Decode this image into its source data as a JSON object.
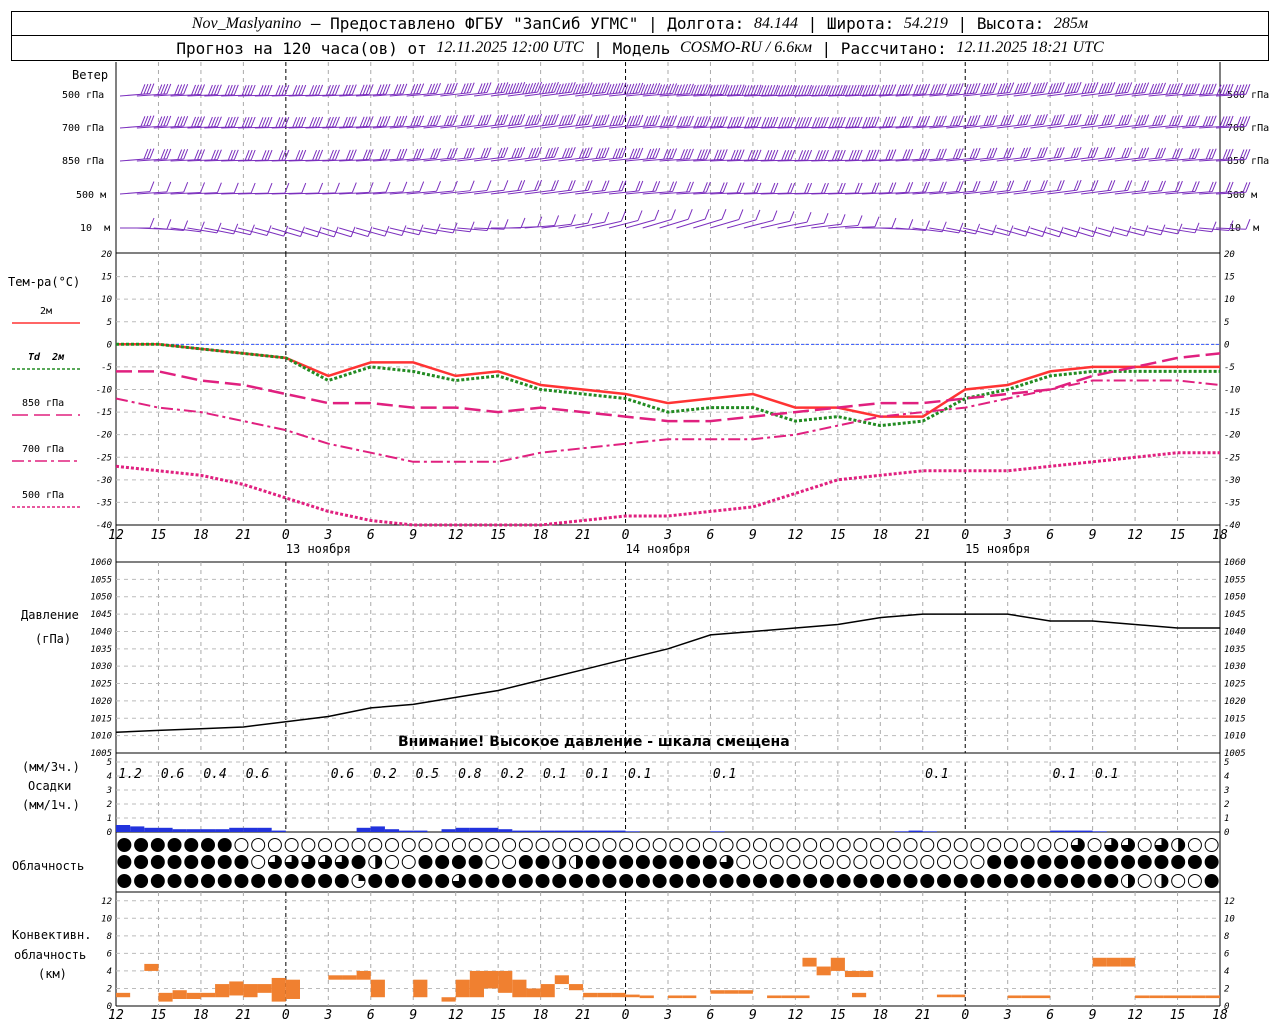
{
  "header": {
    "station": "Nov_Maslyanino",
    "provider": " — Предоставлено ФГБУ \"ЗапСиб УГМС\" | Долгота: ",
    "lon": "84.144",
    "lat_label": " | Широта: ",
    "lat": "54.219",
    "alt_label": " | Высота: ",
    "alt": "285м",
    "forecast_label": "Прогноз на 120 часа(ов) от ",
    "forecast_time": "12.11.2025 12:00 UTC",
    "model_label": " | Модель ",
    "model": "COSMO-RU / 6.6км",
    "calc_label": " | Рассчитано: ",
    "calc_time": "12.11.2025 18:21 UTC"
  },
  "labels": {
    "wind": "Ветер",
    "levels": [
      "500 гПа",
      "700 гПа",
      "850 гПа",
      "500 м",
      "10  м"
    ],
    "temp_title": "Тем-ра(°С)",
    "legend": [
      "2м",
      "Td  2м",
      "850 гПа",
      "700 гПа",
      "500 гПа"
    ],
    "pressure_title": "Давление",
    "pressure_unit": "(гПа)",
    "pressure_note": "Внимание! Высокое давление - шкала смещена",
    "precip_unit_3h": "(мм/3ч.)",
    "precip_title": "Осадки",
    "precip_unit_1h": "(мм/1ч.)",
    "cloud_title": "Облачность",
    "conv_title": [
      "Конвективн.",
      "облачность",
      "(км)"
    ]
  },
  "colors": {
    "t2m": "#ff3333",
    "td": "#228b22",
    "p850": "#e0207f",
    "p700": "#e0207f",
    "p500": "#e0207f",
    "wind": "#7b2fbe",
    "precip": "#2233dd",
    "conv": "#f08030",
    "zero": "#3355ff"
  },
  "x_ticks": [
    "12",
    "15",
    "18",
    "21",
    "0",
    "3",
    "6",
    "9",
    "12",
    "15",
    "18",
    "21",
    "0",
    "3",
    "6",
    "9",
    "12",
    "15",
    "18",
    "21",
    "0",
    "3",
    "6",
    "9",
    "12",
    "15",
    "18"
  ],
  "day_labels": [
    "13 ноября",
    "14 ноября",
    "15 ноября"
  ],
  "chart_data": [
    {
      "type": "line",
      "title": "Тем-ра(°С)",
      "ylim": [
        -40,
        20
      ],
      "yticks": [
        20,
        15,
        10,
        5,
        0,
        -5,
        -10,
        -15,
        -20,
        -25,
        -30,
        -35,
        -40
      ],
      "x_hours": [
        0,
        3,
        6,
        9,
        12,
        15,
        18,
        21,
        24,
        27,
        30,
        33,
        36,
        39,
        42,
        45,
        48,
        51,
        54,
        57,
        60,
        63,
        66,
        69,
        72,
        75,
        78
      ],
      "series": [
        {
          "name": "2м",
          "values": [
            0,
            0,
            -1,
            -2,
            -3,
            -7,
            -4,
            -4,
            -7,
            -6,
            -9,
            -10,
            -11,
            -13,
            -12,
            -11,
            -14,
            -14,
            -16,
            -16,
            -10,
            -9,
            -6,
            -5,
            -5,
            -5,
            -5
          ]
        },
        {
          "name": "Td  2м",
          "values": [
            0,
            0,
            -1,
            -2,
            -3,
            -8,
            -5,
            -6,
            -8,
            -7,
            -10,
            -11,
            -12,
            -15,
            -14,
            -14,
            -17,
            -16,
            -18,
            -17,
            -12,
            -10,
            -7,
            -6,
            -6,
            -6,
            -6
          ]
        },
        {
          "name": "850 гПа",
          "values": [
            -6,
            -6,
            -8,
            -9,
            -11,
            -13,
            -13,
            -14,
            -14,
            -15,
            -14,
            -15,
            -16,
            -17,
            -17,
            -16,
            -15,
            -14,
            -13,
            -13,
            -12,
            -11,
            -10,
            -7,
            -5,
            -3,
            -2
          ]
        },
        {
          "name": "700 гПа",
          "values": [
            -12,
            -14,
            -15,
            -17,
            -19,
            -22,
            -24,
            -26,
            -26,
            -26,
            -24,
            -23,
            -22,
            -21,
            -21,
            -21,
            -20,
            -18,
            -16,
            -15,
            -14,
            -12,
            -10,
            -8,
            -8,
            -8,
            -9
          ]
        },
        {
          "name": "500 гПа",
          "values": [
            -27,
            -28,
            -29,
            -31,
            -34,
            -37,
            -39,
            -41,
            -42,
            -41,
            -40,
            -39,
            -38,
            -38,
            -37,
            -36,
            -33,
            -30,
            -29,
            -28,
            -28,
            -28,
            -27,
            -26,
            -25,
            -24,
            -24
          ]
        }
      ]
    },
    {
      "type": "line",
      "title": "Давление",
      "ylim": [
        1005,
        1060
      ],
      "yticks": [
        1060,
        1055,
        1050,
        1045,
        1040,
        1035,
        1030,
        1025,
        1020,
        1015,
        1010,
        1005
      ],
      "x_hours": [
        0,
        3,
        6,
        9,
        12,
        15,
        18,
        21,
        24,
        27,
        30,
        33,
        36,
        39,
        42,
        45,
        48,
        51,
        54,
        57,
        60,
        63,
        66,
        69,
        72,
        75,
        78
      ],
      "series": [
        {
          "name": "Давление",
          "values": [
            1011,
            1011.5,
            1012,
            1012.5,
            1014,
            1015.5,
            1018,
            1019,
            1021,
            1023,
            1026,
            1029,
            1032,
            1035,
            1039,
            1040,
            1041,
            1042,
            1044,
            1045,
            1045,
            1045,
            1043,
            1043,
            1042,
            1041,
            1041
          ]
        }
      ]
    },
    {
      "type": "bar",
      "title": "Осадки",
      "ylim": [
        0,
        5
      ],
      "yticks": [
        5,
        4,
        3,
        2,
        1,
        0
      ],
      "x_hours": [
        0,
        1,
        2,
        3,
        4,
        5,
        6,
        7,
        8,
        9,
        10,
        11,
        12,
        13,
        14,
        15,
        16,
        17,
        18,
        19,
        20,
        21,
        22,
        23,
        24,
        25,
        26,
        27,
        28,
        29,
        30,
        31,
        32,
        33,
        34,
        35,
        36,
        37,
        38,
        39,
        40,
        41,
        42,
        43,
        44,
        45,
        46,
        47,
        48,
        49,
        50,
        51,
        52,
        53,
        54,
        55,
        56,
        57,
        58,
        59,
        60,
        61,
        62,
        63,
        64,
        65,
        66,
        67,
        68,
        69,
        70,
        71,
        72,
        73,
        74,
        75,
        76,
        77,
        78
      ],
      "values": [
        0.5,
        0.4,
        0.3,
        0.3,
        0.2,
        0.2,
        0.2,
        0.2,
        0.3,
        0.3,
        0.3,
        0.1,
        0,
        0,
        0,
        0,
        0,
        0.3,
        0.4,
        0.2,
        0.1,
        0.1,
        0,
        0.2,
        0.3,
        0.3,
        0.3,
        0.2,
        0.1,
        0.1,
        0.1,
        0.1,
        0.1,
        0.1,
        0.1,
        0.1,
        0.05,
        0,
        0,
        0,
        0,
        0,
        0.05,
        0,
        0,
        0,
        0,
        0,
        0,
        0,
        0,
        0,
        0,
        0,
        0,
        0.05,
        0.1,
        0.05,
        0,
        0,
        0,
        0,
        0,
        0,
        0,
        0,
        0.1,
        0.1,
        0.1,
        0.05,
        0,
        0,
        0,
        0,
        0,
        0,
        0,
        0,
        0
      ],
      "sums_3h": [
        {
          "h": 1,
          "v": "1.2"
        },
        {
          "h": 4,
          "v": "0.6"
        },
        {
          "h": 7,
          "v": "0.4"
        },
        {
          "h": 10,
          "v": "0.6"
        },
        {
          "h": 16,
          "v": "0.6"
        },
        {
          "h": 19,
          "v": "0.2"
        },
        {
          "h": 22,
          "v": "0.5"
        },
        {
          "h": 25,
          "v": "0.8"
        },
        {
          "h": 28,
          "v": "0.2"
        },
        {
          "h": 31,
          "v": "0.1"
        },
        {
          "h": 34,
          "v": "0.1"
        },
        {
          "h": 37,
          "v": "0.1"
        },
        {
          "h": 43,
          "v": "0.1"
        },
        {
          "h": 58,
          "v": "0.1"
        },
        {
          "h": 67,
          "v": "0.1"
        },
        {
          "h": 70,
          "v": "0.1"
        }
      ]
    },
    {
      "type": "bar",
      "title": "Конвективн. облачность",
      "ylim": [
        0,
        13
      ],
      "yticks": [
        12,
        10,
        8,
        6,
        4,
        2,
        0
      ],
      "segments": [
        {
          "h": 0,
          "top": 1.5,
          "bot": 1
        },
        {
          "h": 2,
          "top": 4.8,
          "bot": 4
        },
        {
          "h": 3,
          "top": 1.5,
          "bot": 0.5
        },
        {
          "h": 4,
          "top": 1.8,
          "bot": 0.8
        },
        {
          "h": 5,
          "top": 1.5,
          "bot": 0.8
        },
        {
          "h": 6,
          "top": 1.5,
          "bot": 1
        },
        {
          "h": 7,
          "top": 2.5,
          "bot": 1
        },
        {
          "h": 8,
          "top": 2.8,
          "bot": 1.2
        },
        {
          "h": 9,
          "top": 2.5,
          "bot": 1
        },
        {
          "h": 10,
          "top": 2.5,
          "bot": 1.5
        },
        {
          "h": 11,
          "top": 3.2,
          "bot": 0.5
        },
        {
          "h": 12,
          "top": 3,
          "bot": 0.8
        },
        {
          "h": 15,
          "top": 3.5,
          "bot": 3
        },
        {
          "h": 16,
          "top": 3.5,
          "bot": 3
        },
        {
          "h": 17,
          "top": 4,
          "bot": 3
        },
        {
          "h": 18,
          "top": 3,
          "bot": 1
        },
        {
          "h": 21,
          "top": 3,
          "bot": 1
        },
        {
          "h": 23,
          "top": 1,
          "bot": 0.5
        },
        {
          "h": 24,
          "top": 3,
          "bot": 1
        },
        {
          "h": 25,
          "top": 4,
          "bot": 1
        },
        {
          "h": 26,
          "top": 4,
          "bot": 2
        },
        {
          "h": 27,
          "top": 4,
          "bot": 1.5
        },
        {
          "h": 28,
          "top": 3,
          "bot": 1
        },
        {
          "h": 29,
          "top": 2,
          "bot": 1
        },
        {
          "h": 30,
          "top": 2.5,
          "bot": 1
        },
        {
          "h": 31,
          "top": 3.5,
          "bot": 2.5
        },
        {
          "h": 32,
          "top": 2.5,
          "bot": 1.8
        },
        {
          "h": 33,
          "top": 1.5,
          "bot": 1
        },
        {
          "h": 34,
          "top": 1.5,
          "bot": 1
        },
        {
          "h": 35,
          "top": 1.5,
          "bot": 1
        },
        {
          "h": 36,
          "top": 1.3,
          "bot": 1
        },
        {
          "h": 37,
          "top": 1.2,
          "bot": 0.9
        },
        {
          "h": 39,
          "top": 1.2,
          "bot": 0.9
        },
        {
          "h": 40,
          "top": 1.2,
          "bot": 0.9
        },
        {
          "h": 42,
          "top": 1.8,
          "bot": 1.4
        },
        {
          "h": 43,
          "top": 1.8,
          "bot": 1.4
        },
        {
          "h": 44,
          "top": 1.8,
          "bot": 1.4
        },
        {
          "h": 46,
          "top": 1.2,
          "bot": 0.9
        },
        {
          "h": 47,
          "top": 1.2,
          "bot": 0.9
        },
        {
          "h": 48,
          "top": 1.2,
          "bot": 0.9
        },
        {
          "h": 52,
          "top": 1.5,
          "bot": 1
        },
        {
          "h": 58,
          "top": 1.3,
          "bot": 1
        },
        {
          "h": 59,
          "top": 1.3,
          "bot": 1
        },
        {
          "h": 63,
          "top": 1.2,
          "bot": 0.9
        },
        {
          "h": 64,
          "top": 1.2,
          "bot": 0.9
        },
        {
          "h": 65,
          "top": 1.2,
          "bot": 0.9
        },
        {
          "h": 69,
          "top": 5.5,
          "bot": 4.5
        },
        {
          "h": 70,
          "top": 5.5,
          "bot": 4.5
        },
        {
          "h": 71,
          "top": 5.5,
          "bot": 4.5
        },
        {
          "h": 72,
          "top": 1.2,
          "bot": 0.9
        },
        {
          "h": 73,
          "top": 1.2,
          "bot": 0.9
        },
        {
          "h": 74,
          "top": 1.2,
          "bot": 0.9
        },
        {
          "h": 75,
          "top": 1.2,
          "bot": 0.9
        },
        {
          "h": 76,
          "top": 1.2,
          "bot": 0.9
        },
        {
          "h": 77,
          "top": 1.2,
          "bot": 0.9
        },
        {
          "h": 48.5,
          "top": 5.5,
          "bot": 4.5
        },
        {
          "h": 49.5,
          "top": 4.5,
          "bot": 3.5
        },
        {
          "h": 50.5,
          "top": 5.5,
          "bot": 4
        },
        {
          "h": 51.5,
          "top": 4,
          "bot": 3.3
        },
        {
          "h": 52.5,
          "top": 4,
          "bot": 3.3
        }
      ]
    },
    {
      "type": "table",
      "title": "Облачность",
      "rows": [
        "hhhhhhhooooooooooooooooooooooooooooooooooooooooooooooooooooooooooooooooooooooo",
        "hhhhhhhphhhhhhhhhhhhhhhhhhhhhhhhhooooooooooooohhhhhhhhhhhhhhhhhhhhhhhhhhhhhhhh",
        "hhhhhhhhhhhhhhhhhhhhhhhhhhhhhhhhhhhhhhhhhhhhhhhhhhhhhhhhhhhhhhhhhhhhoooooooooo"
      ],
      "cover": [
        [
          8,
          8,
          8,
          8,
          8,
          8,
          8,
          0,
          0,
          0,
          0,
          0,
          0,
          0,
          0,
          0,
          0,
          0,
          0,
          0,
          0,
          0,
          0,
          0,
          0,
          0,
          0,
          0,
          0,
          0,
          0,
          0,
          0,
          0,
          0,
          0,
          0,
          0,
          0,
          0,
          0,
          0,
          0,
          0,
          0,
          0,
          0,
          0,
          0,
          0,
          0,
          0,
          0,
          0,
          0,
          0,
          0,
          6,
          0,
          6,
          6,
          0,
          6,
          4,
          0,
          0,
          0,
          0,
          0,
          0,
          0,
          0,
          0,
          8,
          8,
          8,
          8,
          8,
          8,
          8,
          8,
          8,
          8,
          6,
          6,
          4,
          6,
          6,
          6,
          6,
          6,
          6,
          6,
          4
        ],
        [
          8,
          8,
          8,
          8,
          8,
          8,
          8,
          8,
          0,
          6,
          6,
          6,
          6,
          6,
          8,
          4,
          0,
          0,
          8,
          8,
          8,
          8,
          0,
          0,
          8,
          8,
          4,
          4,
          8,
          8,
          8,
          8,
          8,
          8,
          8,
          8,
          6,
          0,
          0,
          0,
          0,
          0,
          0,
          0,
          0,
          0,
          0,
          0,
          0,
          0,
          0,
          0,
          8,
          8,
          8,
          8,
          8,
          8,
          8,
          8,
          8,
          8,
          8,
          8,
          8,
          8,
          8,
          8,
          8,
          8,
          8,
          8,
          8,
          8,
          8,
          8,
          8,
          8,
          6,
          8,
          6
        ],
        [
          8,
          8,
          8,
          8,
          8,
          8,
          8,
          8,
          8,
          8,
          8,
          8,
          8,
          8,
          2,
          8,
          8,
          8,
          8,
          8,
          6,
          8,
          8,
          8,
          8,
          8,
          8,
          8,
          8,
          8,
          8,
          8,
          8,
          8,
          8,
          8,
          8,
          8,
          8,
          8,
          8,
          8,
          8,
          8,
          8,
          8,
          8,
          8,
          8,
          8,
          8,
          8,
          8,
          8,
          8,
          8,
          8,
          8,
          8,
          8,
          4,
          0,
          4,
          0,
          0,
          8,
          8,
          8,
          8,
          8,
          8,
          8,
          8,
          8,
          8,
          8,
          8,
          8,
          8,
          8,
          8,
          4,
          4,
          0,
          0,
          0,
          0,
          0,
          0,
          0,
          0,
          0,
          0
        ]
      ]
    }
  ]
}
